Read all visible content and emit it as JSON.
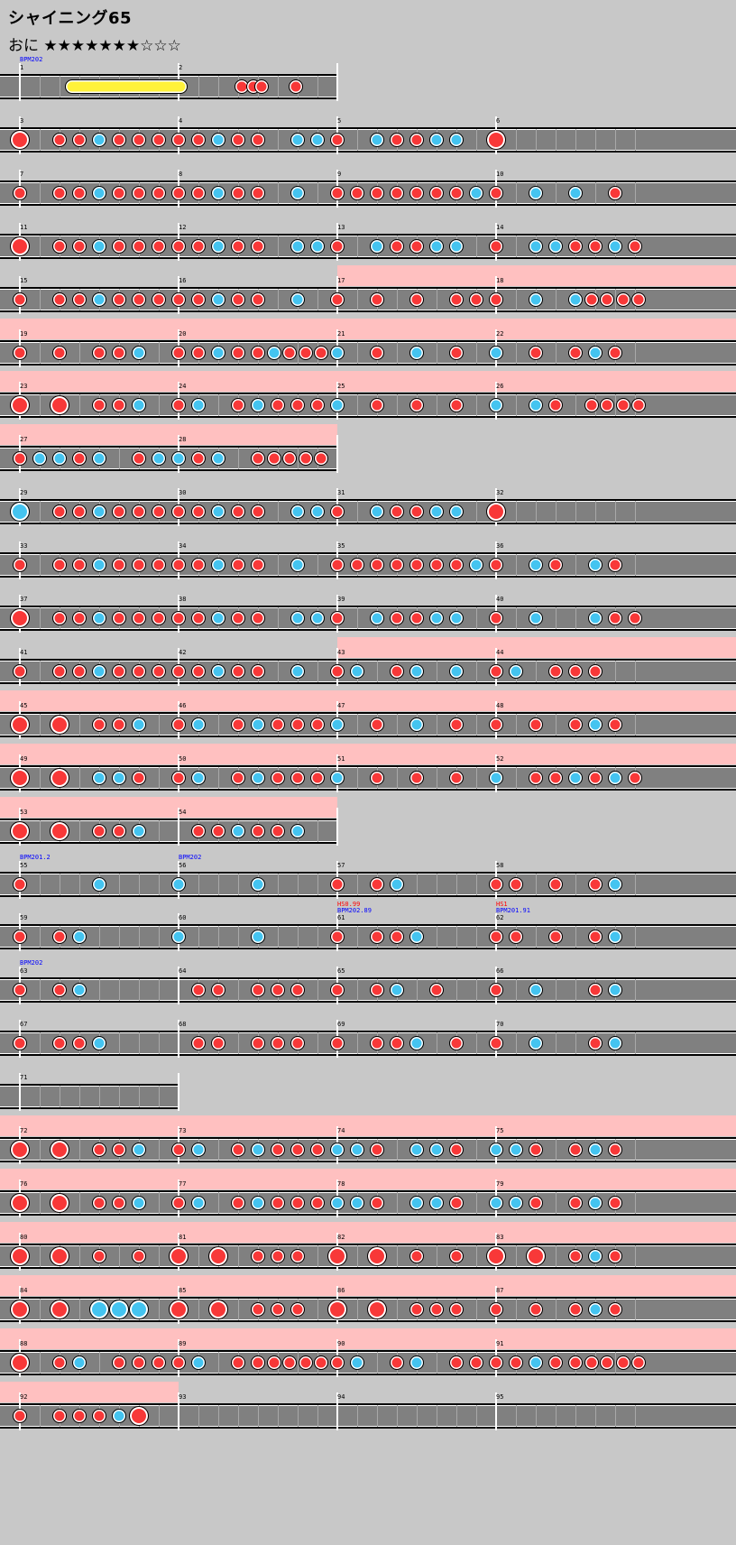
{
  "song": {
    "title": "シャイニング65",
    "difficulty_label": "おに",
    "stars": "★★★★★★★☆☆☆"
  },
  "colors": {
    "don": "#f83838",
    "ka": "#44c4f0",
    "gogo": "#ffc0c0",
    "lane": "#808080",
    "roll": "#fff23a"
  },
  "rows": [
    {
      "len": 2,
      "gogo": [],
      "bars": [
        {
          "n": "1",
          "meta": [
            "BPM202"
          ],
          "metaColor": "blue",
          "notes": "0000000000000000"
        },
        {
          "n": "2",
          "notes": "0000000000000000"
        }
      ],
      "extra": [
        {
          "type": "roll",
          "from": 0.33,
          "to": 1.1
        },
        {
          "type": "notes",
          "list": [
            [
              1.4,
              "d",
              "s"
            ],
            [
              1.47,
              "d",
              "s"
            ],
            [
              1.52,
              "d",
              "s"
            ],
            [
              1.74,
              "d",
              "s"
            ]
          ]
        }
      ]
    },
    {
      "len": 4,
      "gogo": [],
      "bars": [
        {
          "n": "3",
          "notes": "D0dd kddd"
        },
        {
          "n": "4",
          "notes": "ddkd d0kk"
        },
        {
          "n": "5",
          "notes": "d0kd dkk0"
        },
        {
          "n": "6",
          "notes": "D"
        }
      ]
    },
    {
      "len": 4,
      "gogo": [],
      "bars": [
        {
          "n": "7",
          "notes": "d0dd kddd"
        },
        {
          "n": "8",
          "notes": "ddkd d0k0"
        },
        {
          "n": "9",
          "notes": "dddd dddk"
        },
        {
          "n": "10",
          "notes": "d0k0 k0d0"
        }
      ]
    },
    {
      "len": 4,
      "gogo": [],
      "bars": [
        {
          "n": "11",
          "notes": "D0dd kddd"
        },
        {
          "n": "12",
          "notes": "ddkd d0kk"
        },
        {
          "n": "13",
          "notes": "d0kd dkk0"
        },
        {
          "n": "14",
          "notes": "d0kk ddkd"
        }
      ]
    },
    {
      "len": 4,
      "gogo": [
        [
          2,
          4
        ]
      ],
      "bars": [
        {
          "n": "15",
          "notes": "d0dd kddd"
        },
        {
          "n": "16",
          "notes": "ddkd d0k0"
        },
        {
          "n": "17",
          "notes": "d0d0 d0dd"
        },
        {
          "n": "18",
          "notes": "d0k0 kdddd"
        }
      ]
    },
    {
      "len": 4,
      "gogo": [
        [
          0,
          4
        ]
      ],
      "bars": [
        {
          "n": "19",
          "notes": "d0d0 ddk0"
        },
        {
          "n": "20",
          "notes": "ddkd dkddd"
        },
        {
          "n": "21",
          "notes": "k0d0 k0d0"
        },
        {
          "n": "22",
          "notes": "k0d0 dkd0"
        }
      ]
    },
    {
      "len": 4,
      "gogo": [
        [
          0,
          4
        ]
      ],
      "bars": [
        {
          "n": "23",
          "notes": "D0D0 ddk0"
        },
        {
          "n": "24",
          "notes": "dk0d kddd"
        },
        {
          "n": "25",
          "notes": "k0d0 d0d0"
        },
        {
          "n": "26",
          "notes": "k0kd 0dddd"
        }
      ]
    },
    {
      "len": 2,
      "gogo": [
        [
          0,
          2
        ]
      ],
      "bars": [
        {
          "n": "27",
          "notes": "dkkd k0dk"
        },
        {
          "n": "28",
          "notes": "kdk0 ddddd"
        }
      ]
    },
    {
      "len": 4,
      "gogo": [],
      "bars": [
        {
          "n": "29",
          "notes": "K0dd kddd"
        },
        {
          "n": "30",
          "notes": "ddkd d0kk"
        },
        {
          "n": "31",
          "notes": "d0kd dkk0"
        },
        {
          "n": "32",
          "notes": "D"
        }
      ]
    },
    {
      "len": 4,
      "gogo": [],
      "bars": [
        {
          "n": "33",
          "notes": "d0dd kddd"
        },
        {
          "n": "34",
          "notes": "ddkd d0k0"
        },
        {
          "n": "35",
          "notes": "dddd dddk"
        },
        {
          "n": "36",
          "notes": "d0kd 0kd0"
        }
      ]
    },
    {
      "len": 4,
      "gogo": [],
      "bars": [
        {
          "n": "37",
          "notes": "D0dd kddd"
        },
        {
          "n": "38",
          "notes": "ddkd d0kk"
        },
        {
          "n": "39",
          "notes": "d0kd dkk0"
        },
        {
          "n": "40",
          "notes": "d0k0 0kdd"
        }
      ]
    },
    {
      "len": 4,
      "gogo": [
        [
          2,
          4
        ]
      ],
      "bars": [
        {
          "n": "41",
          "notes": "d0dd kddd"
        },
        {
          "n": "42",
          "notes": "ddkd d0k0"
        },
        {
          "n": "43",
          "notes": "dk0d k0k0"
        },
        {
          "n": "44",
          "notes": "dk0d dd00"
        }
      ]
    },
    {
      "len": 4,
      "gogo": [
        [
          0,
          4
        ]
      ],
      "bars": [
        {
          "n": "45",
          "notes": "D0D0 ddk0"
        },
        {
          "n": "46",
          "notes": "dk0d kddd"
        },
        {
          "n": "47",
          "notes": "k0d0 k0d0"
        },
        {
          "n": "48",
          "notes": "d0d0 dkd0"
        }
      ]
    },
    {
      "len": 4,
      "gogo": [
        [
          0,
          4
        ]
      ],
      "bars": [
        {
          "n": "49",
          "notes": "D0D0 kkd0"
        },
        {
          "n": "50",
          "notes": "dk0d kddd"
        },
        {
          "n": "51",
          "notes": "k0d0 d0d0"
        },
        {
          "n": "52",
          "notes": "k0dd kdkd"
        }
      ]
    },
    {
      "len": 2,
      "gogo": [
        [
          0,
          2
        ]
      ],
      "bars": [
        {
          "n": "53",
          "notes": "D0D0 ddk0"
        },
        {
          "n": "54",
          "notes": "0ddk ddk0"
        }
      ]
    },
    {
      "len": 4,
      "gogo": [],
      "bars": [
        {
          "n": "55",
          "meta": [
            "BPM201.2"
          ],
          "metaColor": "blue",
          "notes": "d000 k000"
        },
        {
          "n": "56",
          "meta": [
            "BPM202"
          ],
          "metaColor": "blue",
          "notes": "k000 k000"
        },
        {
          "n": "57",
          "notes": "d0dk 0000"
        },
        {
          "n": "58",
          "notes": "dd0d 0dk0"
        }
      ]
    },
    {
      "len": 4,
      "gogo": [],
      "bars": [
        {
          "n": "59",
          "notes": "d0dk 0000"
        },
        {
          "n": "60",
          "notes": "k000 k000"
        },
        {
          "n": "61",
          "meta": [
            "HS0.99",
            "BPM202.89"
          ],
          "metaColor": "mixed",
          "notes": "d0dd k000"
        },
        {
          "n": "62",
          "meta": [
            "HS1",
            "BPM201.91"
          ],
          "metaColor": "mixed",
          "notes": "dd0d 0dk0"
        }
      ]
    },
    {
      "len": 4,
      "gogo": [],
      "bars": [
        {
          "n": "63",
          "meta": [
            "BPM202"
          ],
          "metaColor": "blue",
          "notes": "d0dk 0000"
        },
        {
          "n": "64",
          "notes": "0dd0 ddd0"
        },
        {
          "n": "65",
          "notes": "d0dk 0d00"
        },
        {
          "n": "66",
          "notes": "d0k0 0dk0"
        }
      ]
    },
    {
      "len": 4,
      "gogo": [],
      "bars": [
        {
          "n": "67",
          "notes": "d0dd k000"
        },
        {
          "n": "68",
          "notes": "0dd0 ddd0"
        },
        {
          "n": "69",
          "notes": "d0dd k0d0"
        },
        {
          "n": "70",
          "notes": "d0k0 0dk0"
        }
      ]
    },
    {
      "len": 1,
      "gogo": [],
      "bars": [
        {
          "n": "71",
          "notes": ""
        }
      ]
    },
    {
      "len": 4,
      "gogo": [
        [
          0,
          4
        ]
      ],
      "bars": [
        {
          "n": "72",
          "notes": "D0D0 ddk0"
        },
        {
          "n": "73",
          "notes": "dk0d kddd"
        },
        {
          "n": "74",
          "notes": "kkd0 kkd0"
        },
        {
          "n": "75",
          "notes": "kkd0 dkd0"
        }
      ]
    },
    {
      "len": 4,
      "gogo": [
        [
          0,
          4
        ]
      ],
      "bars": [
        {
          "n": "76",
          "notes": "D0D0 ddk0"
        },
        {
          "n": "77",
          "notes": "dk0d kddd"
        },
        {
          "n": "78",
          "notes": "kkd0 kkd0"
        },
        {
          "n": "79",
          "notes": "kkd0 dkd0"
        }
      ]
    },
    {
      "len": 4,
      "gogo": [
        [
          0,
          4
        ]
      ],
      "bars": [
        {
          "n": "80",
          "notes": "D0D0 d0d0"
        },
        {
          "n": "81",
          "notes": "D0D0 ddd0"
        },
        {
          "n": "82",
          "notes": "D0D0 d0d0"
        },
        {
          "n": "83",
          "notes": "D0D0 dkd0"
        }
      ]
    },
    {
      "len": 4,
      "gogo": [
        [
          0,
          4
        ]
      ],
      "bars": [
        {
          "n": "84",
          "notes": "D0D0 KKK0"
        },
        {
          "n": "85",
          "notes": "D0D0 ddd0"
        },
        {
          "n": "86",
          "notes": "D0D0 ddd0"
        },
        {
          "n": "87",
          "notes": "d0d0 dkd0"
        }
      ]
    },
    {
      "len": 4,
      "gogo": [
        [
          0,
          4
        ]
      ],
      "bars": [
        {
          "n": "88",
          "notes": "D0dk 0ddd"
        },
        {
          "n": "89",
          "notes": "dk0d ddddd"
        },
        {
          "n": "90",
          "notes": "dk0d k0dd"
        },
        {
          "n": "91",
          "notes": "ddkd ddddd"
        }
      ]
    },
    {
      "len": 4,
      "gogo": [
        [
          0,
          1
        ]
      ],
      "bars": [
        {
          "n": "92",
          "notes": "d0dd dkD0"
        },
        {
          "n": "93",
          "notes": ""
        },
        {
          "n": "94",
          "notes": ""
        },
        {
          "n": "95",
          "notes": ""
        }
      ]
    }
  ]
}
